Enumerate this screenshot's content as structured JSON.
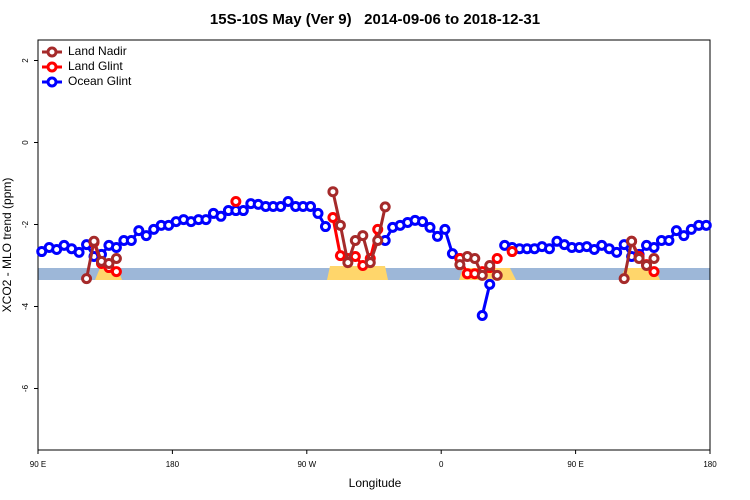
{
  "chart_data": {
    "type": "line",
    "title": "15S-10S May (Ver 9)   2014-09-06 to 2018-12-31",
    "x_label": "Longitude",
    "y_label": "XCO2 - MLO trend (ppm)",
    "xlim": [
      90,
      540
    ],
    "ylim": [
      -7.5,
      2.5
    ],
    "xticks": [
      {
        "value": 90,
        "label": "90 E"
      },
      180,
      {
        "value": 270,
        "label": "90 W"
      },
      {
        "value": 360,
        "label": "0"
      },
      {
        "value": 450,
        "label": "90 E"
      },
      {
        "value": 540,
        "label": "180"
      }
    ],
    "yticks": [
      -6,
      -4,
      -2,
      0,
      2
    ],
    "legend": "top-left",
    "x": [
      92.5,
      97.5,
      102.5,
      107.5,
      112.5,
      117.5,
      122.5,
      127.5,
      132.5,
      137.5,
      142.5,
      147.5,
      152.5,
      157.5,
      162.5,
      167.5,
      172.5,
      177.5,
      182.5,
      187.5,
      192.5,
      197.5,
      202.5,
      207.5,
      212.5,
      217.5,
      222.5,
      227.5,
      232.5,
      237.5,
      242.5,
      247.5,
      252.5,
      257.5,
      262.5,
      267.5,
      272.5,
      277.5,
      282.5,
      287.5,
      292.5,
      297.5,
      302.5,
      307.5,
      312.5,
      317.5,
      322.5,
      327.5,
      332.5,
      337.5,
      342.5,
      347.5,
      352.5,
      357.5,
      362.5,
      367.5,
      372.5,
      377.5,
      382.5,
      387.5,
      392.5,
      397.5,
      402.5,
      407.5,
      412.5,
      417.5,
      422.5,
      427.5,
      432.5,
      437.5,
      442.5,
      447.5,
      452.5,
      457.5,
      462.5,
      467.5,
      472.5,
      477.5,
      482.5,
      487.5,
      492.5,
      497.5,
      502.5,
      507.5,
      512.5,
      517.5,
      522.5,
      527.5,
      532.5,
      537.5
    ],
    "series": [
      {
        "name": "Land Nadir",
        "color": "#a52a2a",
        "values": [
          null,
          null,
          null,
          null,
          null,
          null,
          -3.32,
          -2.41,
          -2.9,
          -2.95,
          -2.83,
          null,
          null,
          null,
          null,
          null,
          null,
          null,
          null,
          null,
          null,
          null,
          null,
          null,
          null,
          null,
          null,
          null,
          null,
          null,
          null,
          null,
          null,
          null,
          null,
          null,
          null,
          null,
          null,
          -1.2,
          -2.02,
          -2.93,
          -2.39,
          -2.27,
          -2.93,
          -2.39,
          -1.57,
          null,
          null,
          null,
          null,
          null,
          null,
          null,
          null,
          null,
          -2.98,
          -2.78,
          -2.83,
          -3.24,
          -3.0,
          -3.24,
          null,
          null,
          null,
          null,
          null,
          null,
          null,
          null,
          null,
          null,
          null,
          null,
          null,
          null,
          null,
          null,
          -3.32,
          -2.41,
          -2.83,
          -3.0,
          -2.83,
          null,
          null,
          null,
          null,
          null,
          null,
          null
        ]
      },
      {
        "name": "Land Glint",
        "color": "#ff0000",
        "values": [
          null,
          null,
          null,
          null,
          null,
          null,
          null,
          -2.44,
          -2.95,
          -3.05,
          -3.15,
          null,
          null,
          null,
          null,
          null,
          null,
          null,
          null,
          null,
          null,
          null,
          null,
          null,
          null,
          null,
          -1.44,
          null,
          null,
          null,
          null,
          null,
          null,
          null,
          null,
          null,
          null,
          null,
          null,
          -1.83,
          -2.76,
          -2.83,
          -2.78,
          -3.0,
          -2.83,
          -2.12,
          null,
          null,
          null,
          null,
          null,
          null,
          null,
          null,
          null,
          null,
          -2.83,
          -3.2,
          -3.2,
          -3.15,
          -3.05,
          -2.83,
          null,
          -2.66,
          null,
          null,
          null,
          null,
          null,
          null,
          null,
          null,
          null,
          null,
          null,
          null,
          null,
          null,
          null,
          -2.41,
          -2.78,
          -2.98,
          -3.15,
          null,
          null,
          null,
          null,
          null,
          null,
          null
        ]
      },
      {
        "name": "Ocean Glint",
        "color": "#0000ff",
        "values": [
          -2.66,
          -2.56,
          -2.61,
          -2.51,
          -2.59,
          -2.68,
          -2.49,
          -2.78,
          -2.73,
          -2.51,
          -2.56,
          -2.39,
          -2.39,
          -2.15,
          -2.27,
          -2.12,
          -2.02,
          -2.02,
          -1.93,
          -1.88,
          -1.93,
          -1.88,
          -1.88,
          -1.73,
          -1.8,
          -1.66,
          -1.66,
          -1.66,
          -1.49,
          -1.51,
          -1.56,
          -1.56,
          -1.56,
          -1.44,
          -1.56,
          -1.56,
          -1.56,
          -1.73,
          -2.05,
          null,
          null,
          null,
          null,
          null,
          null,
          null,
          -2.39,
          -2.07,
          -2.02,
          -1.95,
          -1.9,
          -1.93,
          -2.07,
          -2.29,
          -2.12,
          -2.71,
          -2.83,
          null,
          null,
          -4.22,
          -3.46,
          null,
          -2.51,
          -2.56,
          -2.59,
          -2.59,
          -2.59,
          -2.54,
          -2.59,
          -2.41,
          -2.49,
          -2.56,
          -2.56,
          -2.54,
          -2.61,
          -2.51,
          -2.59,
          -2.68,
          -2.49,
          -2.78,
          -2.73,
          -2.51,
          -2.56,
          -2.39,
          -2.39,
          -2.15,
          -2.27,
          -2.12,
          -2.02,
          -2.02
        ]
      }
    ]
  }
}
